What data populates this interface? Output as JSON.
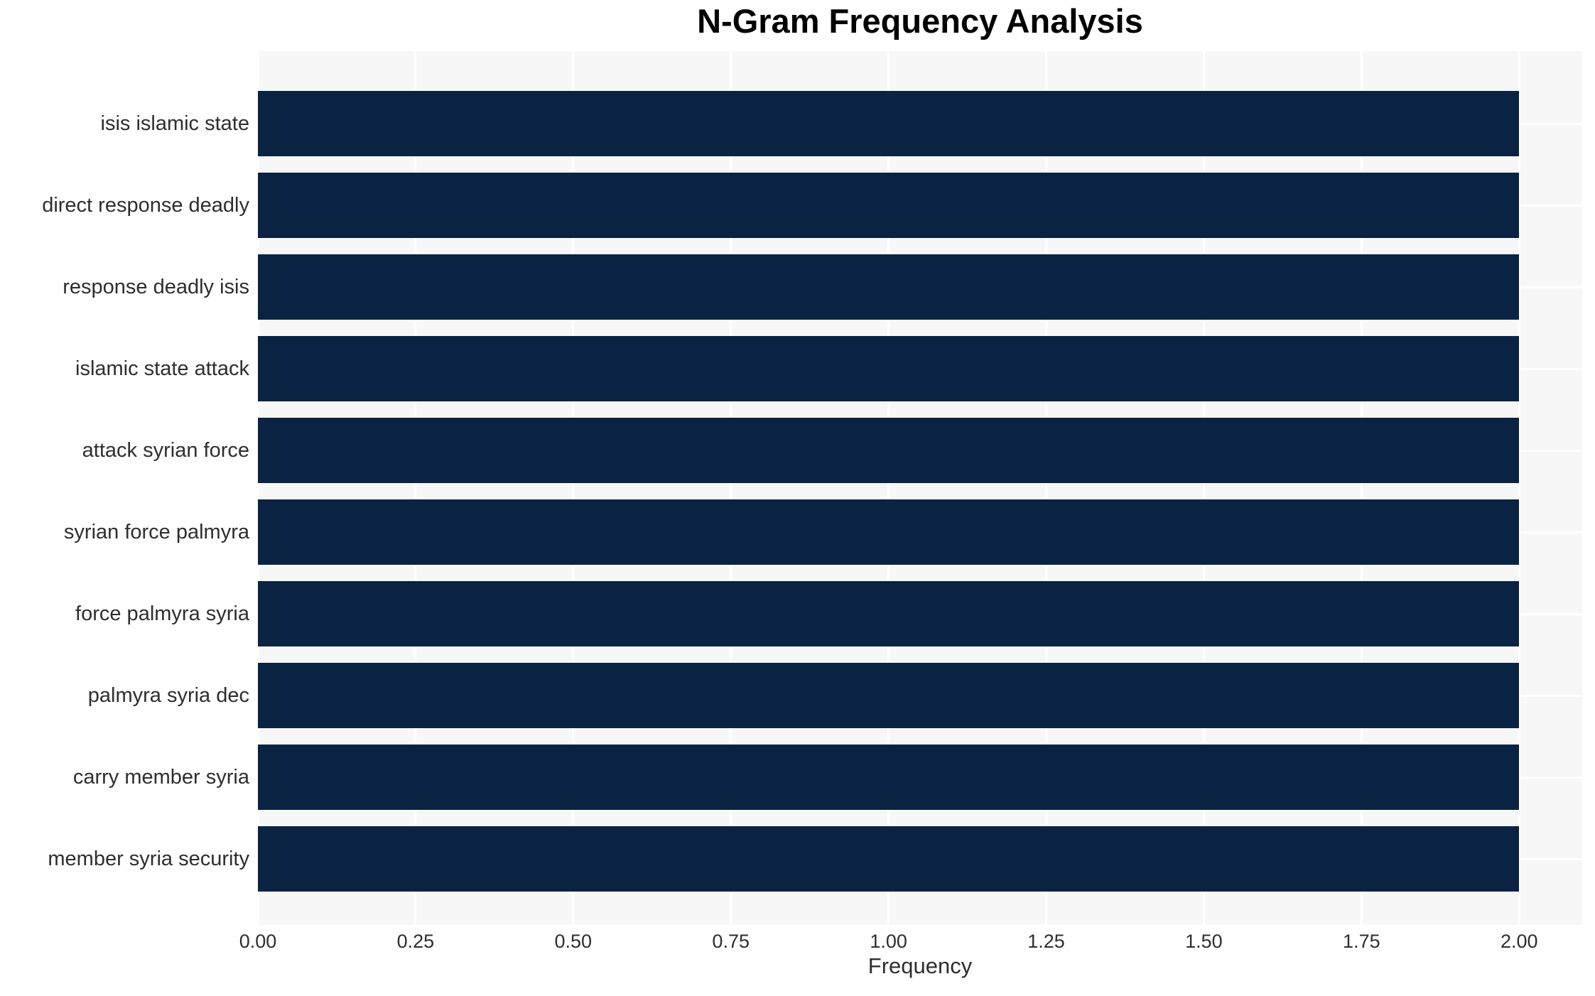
{
  "chart_data": {
    "type": "bar",
    "orientation": "horizontal",
    "title": "N-Gram Frequency Analysis",
    "xlabel": "Frequency",
    "ylabel": "",
    "categories": [
      "isis islamic state",
      "direct response deadly",
      "response deadly isis",
      "islamic state attack",
      "attack syrian force",
      "syrian force palmyra",
      "force palmyra syria",
      "palmyra syria dec",
      "carry member syria",
      "member syria security"
    ],
    "values": [
      2,
      2,
      2,
      2,
      2,
      2,
      2,
      2,
      2,
      2
    ],
    "xlim": [
      0,
      2.1
    ],
    "xticks": {
      "values": [
        0,
        0.25,
        0.5,
        0.75,
        1.0,
        1.25,
        1.5,
        1.75,
        2.0
      ],
      "labels": [
        "0.00",
        "0.25",
        "0.50",
        "0.75",
        "1.00",
        "1.25",
        "1.50",
        "1.75",
        "2.00"
      ]
    },
    "grid": "white major gridlines (vertical at ticks, horizontal at category centers) on light gray panel",
    "legend": "none",
    "colors": {
      "bar": "#0a2342",
      "panel": "#f7f7f7",
      "grid": "#ffffff",
      "text": "#2e2e2e",
      "title": "#000000",
      "background": "#ffffff"
    }
  }
}
